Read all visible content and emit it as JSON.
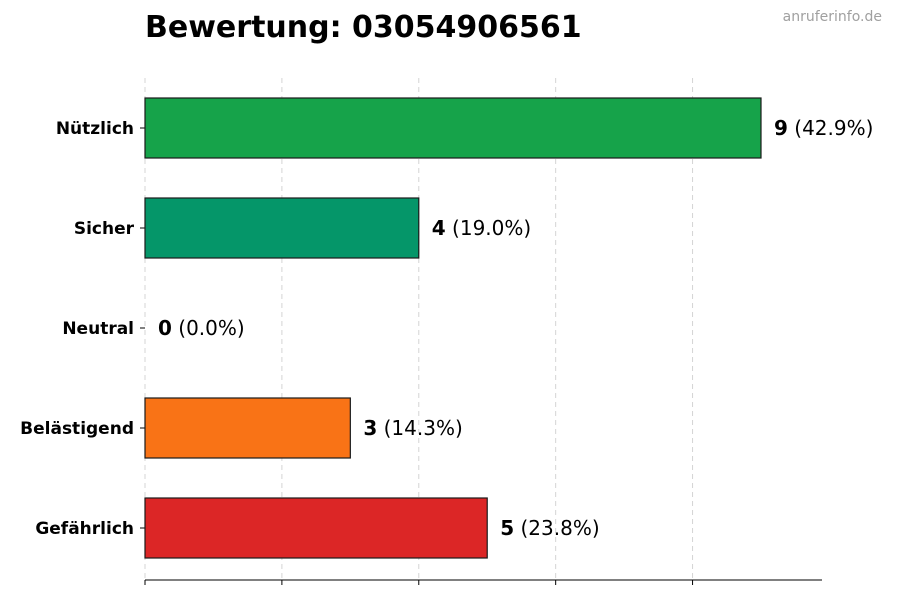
{
  "chart_data": {
    "type": "bar",
    "orientation": "horizontal",
    "title": "Bewertung: 03054906561",
    "watermark": "anruferinfo.de",
    "categories": [
      "Nützlich",
      "Sicher",
      "Neutral",
      "Belästigend",
      "Gefährlich"
    ],
    "values": [
      9,
      4,
      0,
      3,
      5
    ],
    "percent_labels": [
      "(42.9%)",
      "(19.0%)",
      "(0.0%)",
      "(14.3%)",
      "(23.8%)"
    ],
    "colors": [
      "#16a34a",
      "#059669",
      "#64748b",
      "#f97316",
      "#dc2626"
    ],
    "xlim": [
      0,
      9
    ],
    "grid": true,
    "xlabel": "",
    "ylabel": ""
  }
}
